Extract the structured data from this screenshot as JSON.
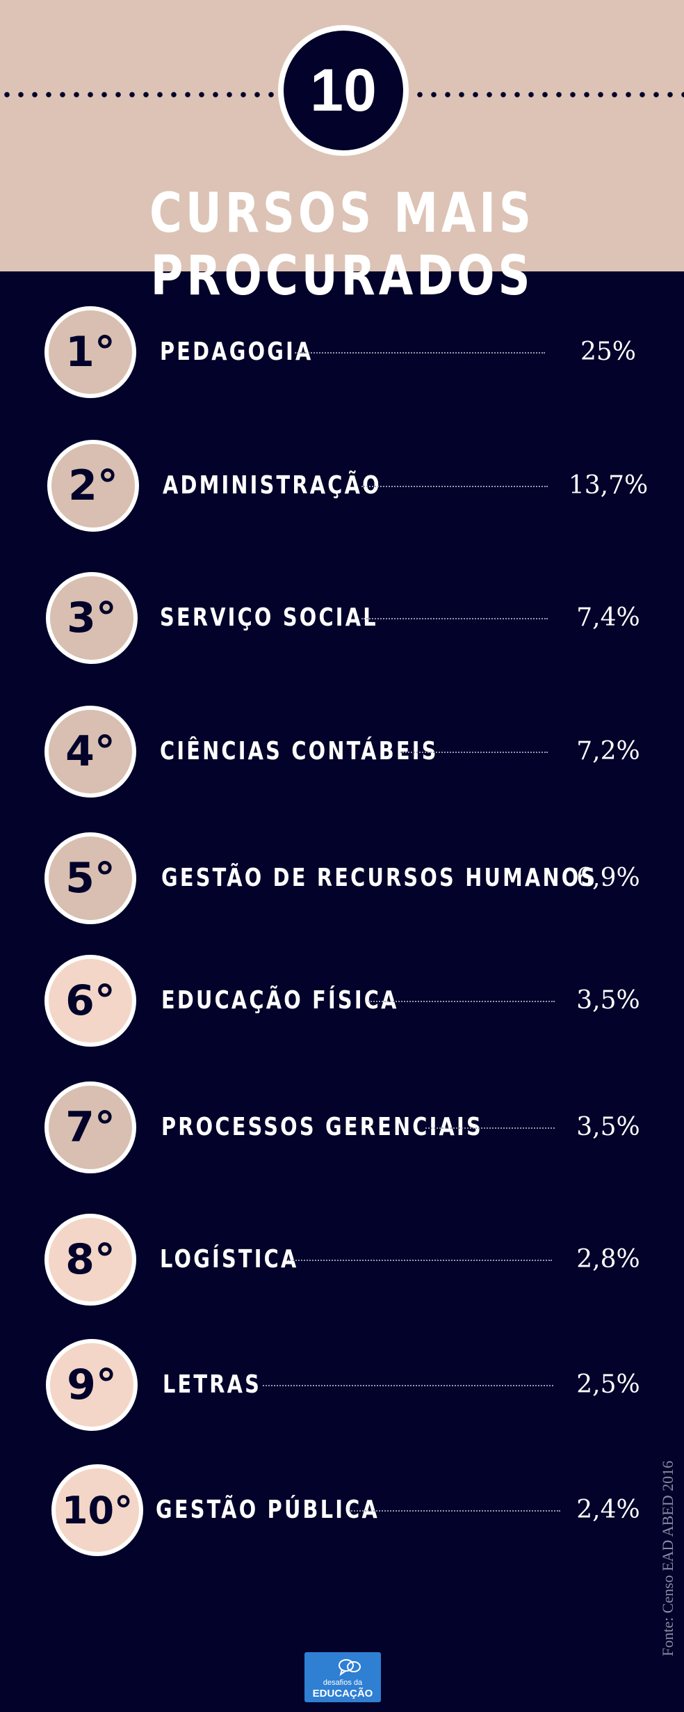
{
  "header": {
    "badge": "10",
    "title": "CURSOS MAIS PROCURADOS"
  },
  "courses": [
    {
      "rank": "1°",
      "name": "PEDAGOGIA",
      "percent": "25%"
    },
    {
      "rank": "2°",
      "name": "ADMINISTRAÇÃO",
      "percent": "13,7%"
    },
    {
      "rank": "3°",
      "name": "SERVIÇO SOCIAL",
      "percent": "7,4%"
    },
    {
      "rank": "4°",
      "name": "CIÊNCIAS CONTÁBEIS",
      "percent": "7,2%"
    },
    {
      "rank": "5°",
      "name": "GESTÃO DE RECURSOS HUMANOS",
      "percent": "6,9%"
    },
    {
      "rank": "6°",
      "name": "EDUCAÇÃO FÍSICA",
      "percent": "3,5%"
    },
    {
      "rank": "7°",
      "name": "PROCESSOS GERENCIAIS",
      "percent": "3,5%"
    },
    {
      "rank": "8°",
      "name": "LOGÍSTICA",
      "percent": "2,8%"
    },
    {
      "rank": "9°",
      "name": "LETRAS",
      "percent": "2,5%"
    },
    {
      "rank": "10°",
      "name": "GESTÃO PÚBLICA",
      "percent": "2,4%"
    }
  ],
  "footer": {
    "source": "Fonte: Censo EAD ABED 2016",
    "logo_small": "desafios da",
    "logo_big": "EDUCAÇÃO"
  },
  "colors": {
    "background": "#02022a",
    "header": "#dcc3b5",
    "rank_circle": "#d8bfb1",
    "rank_circle_light": "#f3d6c7"
  }
}
